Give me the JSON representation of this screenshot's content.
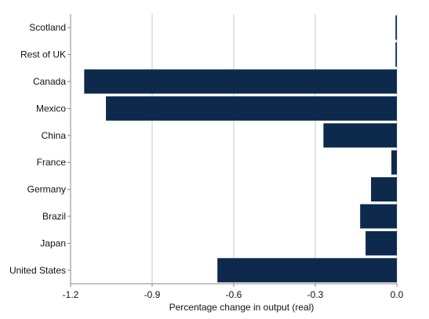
{
  "chart_data": {
    "type": "bar",
    "orientation": "horizontal",
    "categories": [
      "Scotland",
      "Rest of UK",
      "Canada",
      "Mexico",
      "China",
      "France",
      "Germany",
      "Brazil",
      "Japan",
      "United States"
    ],
    "values": [
      -0.005,
      -0.005,
      -1.15,
      -1.07,
      -0.27,
      -0.02,
      -0.095,
      -0.135,
      -0.115,
      -0.66
    ],
    "title": "",
    "xlabel": "Percentage change in output (real)",
    "ylabel": "",
    "xlim": [
      -1.2,
      0.0
    ],
    "xticks": [
      -1.2,
      -0.9,
      -0.6,
      -0.3,
      0.0
    ],
    "xtick_labels": [
      "-1.2",
      "-0.9",
      "-0.6",
      "-0.3",
      "0.0"
    ],
    "grid": "vertical",
    "legend": "none",
    "colors": {
      "bar": "#0d2a4d",
      "grid": "#c8c8c8",
      "axis": "#888888"
    }
  }
}
